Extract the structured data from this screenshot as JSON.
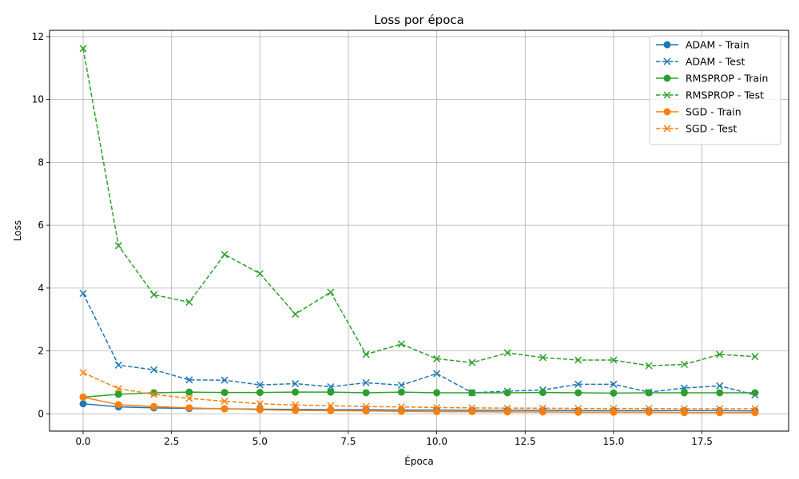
{
  "chart_data": {
    "type": "line",
    "title": "Loss por época",
    "xlabel": "Época",
    "ylabel": "Loss",
    "xlim": [
      -0.95,
      19.95
    ],
    "ylim": [
      -0.55,
      12.2
    ],
    "xticks": [
      0.0,
      2.5,
      5.0,
      7.5,
      10.0,
      12.5,
      15.0,
      17.5
    ],
    "xtick_labels": [
      "0.0",
      "2.5",
      "5.0",
      "7.5",
      "10.0",
      "12.5",
      "15.0",
      "17.5"
    ],
    "yticks": [
      0,
      2,
      4,
      6,
      8,
      10,
      12
    ],
    "ytick_labels": [
      "0",
      "2",
      "4",
      "6",
      "8",
      "10",
      "12"
    ],
    "grid": true,
    "legend_position": "top-right",
    "x": [
      0,
      1,
      2,
      3,
      4,
      5,
      6,
      7,
      8,
      9,
      10,
      11,
      12,
      13,
      14,
      15,
      16,
      17,
      18,
      19
    ],
    "series": [
      {
        "name": "ADAM - Train",
        "color": "#1f77b4",
        "linestyle": "solid",
        "marker": "circle",
        "values": [
          0.32,
          0.22,
          0.19,
          0.17,
          0.16,
          0.15,
          0.14,
          0.13,
          0.13,
          0.12,
          0.12,
          0.11,
          0.11,
          0.11,
          0.1,
          0.1,
          0.1,
          0.1,
          0.1,
          0.09
        ]
      },
      {
        "name": "ADAM - Test",
        "color": "#1f77b4",
        "linestyle": "dashed",
        "marker": "x",
        "values": [
          3.83,
          1.55,
          1.4,
          1.08,
          1.07,
          0.92,
          0.96,
          0.86,
          0.99,
          0.91,
          1.28,
          0.67,
          0.72,
          0.76,
          0.94,
          0.94,
          0.69,
          0.82,
          0.89,
          0.6
        ]
      },
      {
        "name": "RMSPROP - Train",
        "color": "#2ca02c",
        "linestyle": "solid",
        "marker": "circle",
        "values": [
          0.53,
          0.62,
          0.67,
          0.69,
          0.68,
          0.68,
          0.69,
          0.69,
          0.67,
          0.69,
          0.67,
          0.67,
          0.67,
          0.68,
          0.67,
          0.66,
          0.67,
          0.67,
          0.67,
          0.67
        ]
      },
      {
        "name": "RMSPROP - Test",
        "color": "#2ca02c",
        "linestyle": "dashed",
        "marker": "x",
        "values": [
          11.62,
          5.35,
          3.79,
          3.55,
          5.07,
          4.46,
          3.17,
          3.87,
          1.89,
          2.22,
          1.75,
          1.63,
          1.94,
          1.79,
          1.71,
          1.71,
          1.53,
          1.57,
          1.89,
          1.82
        ]
      },
      {
        "name": "SGD - Train",
        "color": "#ff7f0e",
        "linestyle": "solid",
        "marker": "circle",
        "values": [
          0.53,
          0.29,
          0.23,
          0.19,
          0.16,
          0.13,
          0.11,
          0.1,
          0.09,
          0.08,
          0.07,
          0.07,
          0.06,
          0.06,
          0.05,
          0.05,
          0.05,
          0.04,
          0.04,
          0.04
        ]
      },
      {
        "name": "SGD - Test",
        "color": "#ff7f0e",
        "linestyle": "dashed",
        "marker": "x",
        "values": [
          1.31,
          0.8,
          0.62,
          0.49,
          0.4,
          0.32,
          0.28,
          0.26,
          0.23,
          0.22,
          0.2,
          0.19,
          0.18,
          0.18,
          0.17,
          0.17,
          0.17,
          0.16,
          0.16,
          0.16
        ]
      }
    ]
  }
}
